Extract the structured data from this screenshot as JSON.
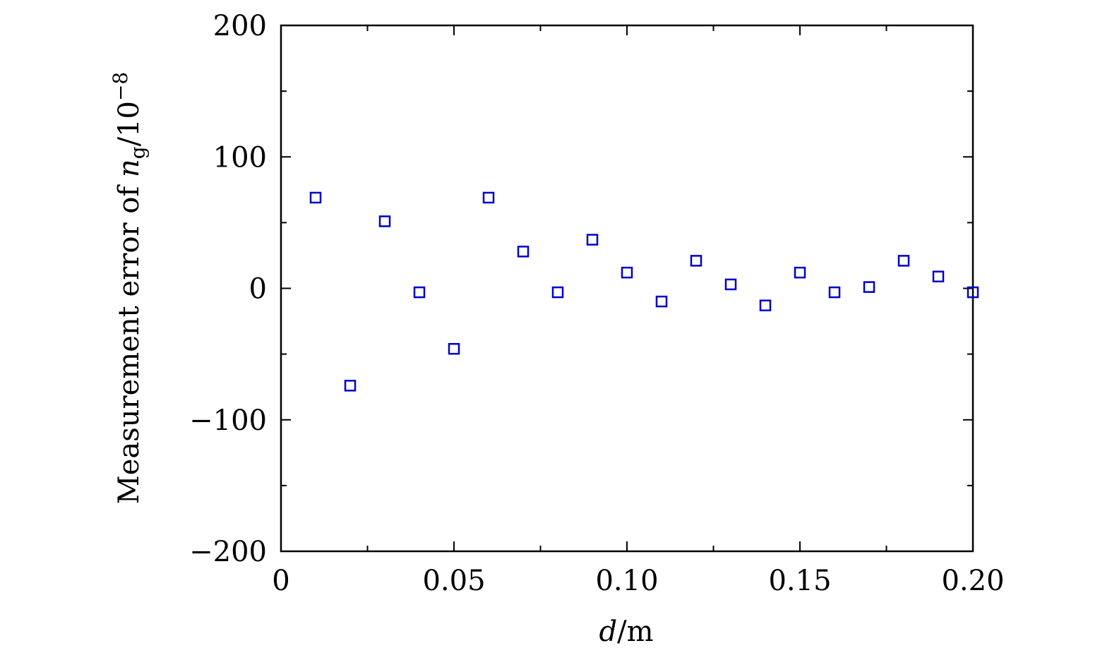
{
  "chart_data": {
    "type": "scatter",
    "title": "",
    "xlabel": {
      "var": "d",
      "sep": "/",
      "unit": "m"
    },
    "ylabel": {
      "prefix": "Measurement error of ",
      "var": "n",
      "subscript": "g",
      "suffix": "/10",
      "exponent": "−8"
    },
    "xlim": [
      0,
      0.2
    ],
    "ylim": [
      -200,
      200
    ],
    "x_ticks_major": [
      0,
      0.05,
      0.1,
      0.15,
      0.2
    ],
    "x_ticks_minor": [
      0.025,
      0.075,
      0.125,
      0.175
    ],
    "x_tick_labels": [
      "0",
      "0.05",
      "0.10",
      "0.15",
      "0.20"
    ],
    "y_ticks_major": [
      -200,
      -100,
      0,
      100,
      200
    ],
    "y_ticks_minor": [
      -150,
      -50,
      50,
      150
    ],
    "y_tick_labels": [
      "−200",
      "−100",
      "0",
      "100",
      "200"
    ],
    "grid": false,
    "marker_color": "#0000cc",
    "series": [
      {
        "marker": "open-square",
        "x": [
          0.01,
          0.02,
          0.03,
          0.04,
          0.05,
          0.06,
          0.07,
          0.08,
          0.09,
          0.1,
          0.11,
          0.12,
          0.13,
          0.14,
          0.15,
          0.16,
          0.17,
          0.18,
          0.19,
          0.2
        ],
        "y": [
          69,
          -74,
          51,
          -3,
          -46,
          69,
          28,
          -3,
          37,
          12,
          -10,
          21,
          3,
          -13,
          12,
          -3,
          1,
          21,
          9,
          -3
        ]
      }
    ]
  }
}
